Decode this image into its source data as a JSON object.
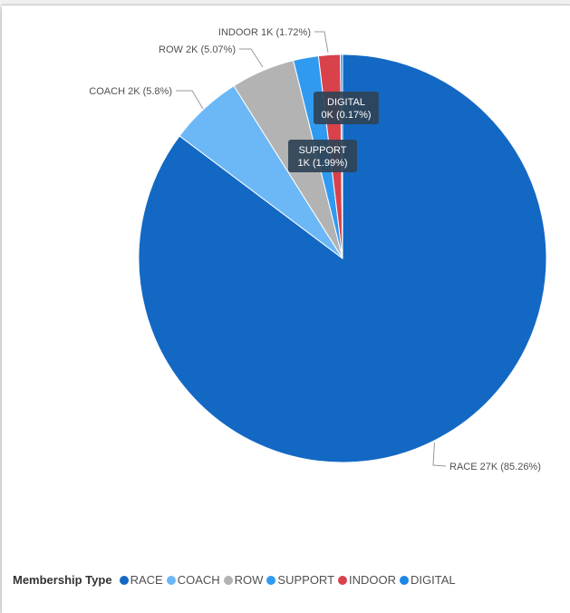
{
  "chart_data": {
    "type": "pie",
    "title": "",
    "legend_title": "Membership Type",
    "legend_position": "bottom-left",
    "categories": [
      "RACE",
      "COACH",
      "ROW",
      "SUPPORT",
      "INDOOR",
      "DIGITAL"
    ],
    "values": [
      85.26,
      5.8,
      5.07,
      1.99,
      1.72,
      0.17
    ],
    "slices": [
      {
        "name": "RACE",
        "value": 85.26,
        "color": "#1368c4",
        "label": "RACE 27K (85.26%)"
      },
      {
        "name": "COACH",
        "value": 5.8,
        "color": "#6cb8f6",
        "label": "COACH 2K (5.8%)"
      },
      {
        "name": "ROW",
        "value": 5.07,
        "color": "#b3b3b3",
        "label": "ROW 2K (5.07%)"
      },
      {
        "name": "SUPPORT",
        "value": 1.99,
        "color": "#2f9af0",
        "label_line1": "SUPPORT",
        "label_line2": "1K (1.99%)"
      },
      {
        "name": "INDOOR",
        "value": 1.72,
        "color": "#d9424b",
        "label": "INDOOR 1K (1.72%)"
      },
      {
        "name": "DIGITAL",
        "value": 0.17,
        "color": "#1a86e8",
        "label_line1": "DIGITAL",
        "label_line2": "0K (0.17%)"
      }
    ]
  }
}
